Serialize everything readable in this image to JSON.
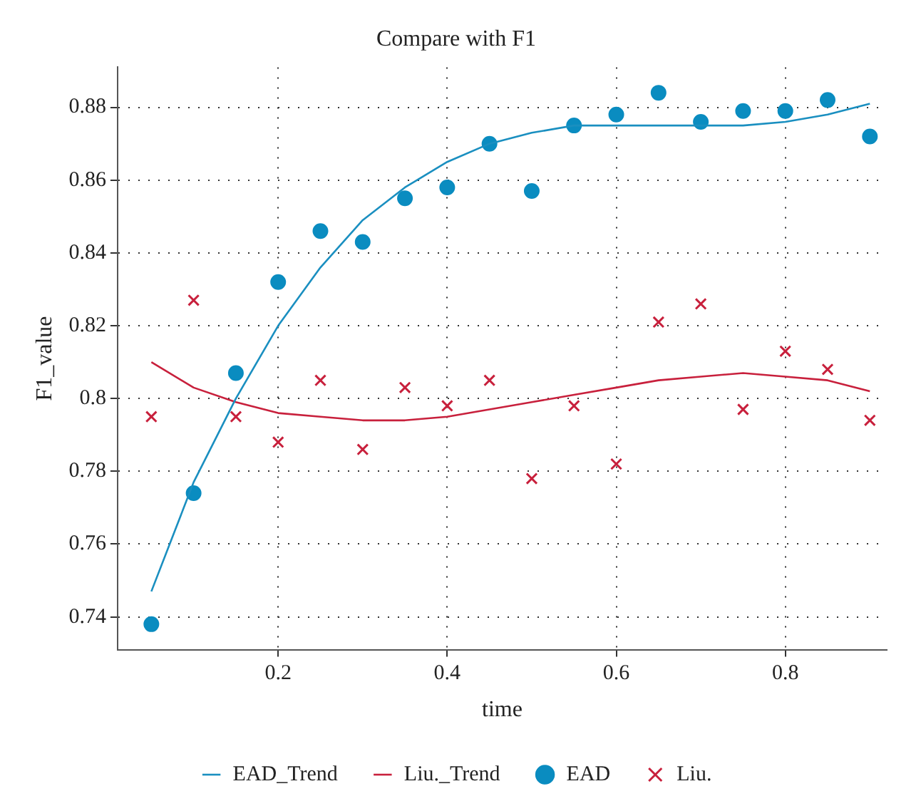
{
  "chart_data": {
    "type": "scatter",
    "title": "Compare with F1",
    "xlabel": "time",
    "ylabel": "F1_value",
    "x": [
      0.05,
      0.1,
      0.15,
      0.2,
      0.25,
      0.3,
      0.35,
      0.4,
      0.45,
      0.5,
      0.55,
      0.6,
      0.65,
      0.7,
      0.75,
      0.8,
      0.85,
      0.9
    ],
    "series": [
      {
        "name": "EAD_Trend",
        "type": "line",
        "marker": "none",
        "color": "#1a8fc0",
        "values": [
          0.747,
          0.777,
          0.8,
          0.82,
          0.836,
          0.849,
          0.858,
          0.865,
          0.87,
          0.873,
          0.875,
          0.875,
          0.875,
          0.875,
          0.875,
          0.876,
          0.878,
          0.881
        ]
      },
      {
        "name": "Liu._Trend",
        "type": "line",
        "marker": "none",
        "color": "#c8203c",
        "values": [
          0.81,
          0.803,
          0.799,
          0.796,
          0.795,
          0.794,
          0.794,
          0.795,
          0.797,
          0.799,
          0.801,
          0.803,
          0.805,
          0.806,
          0.807,
          0.806,
          0.805,
          0.802
        ]
      },
      {
        "name": "EAD",
        "type": "scatter",
        "marker": "circle",
        "color": "#0a8cc0",
        "values": [
          0.738,
          0.774,
          0.807,
          0.832,
          0.846,
          0.843,
          0.855,
          0.858,
          0.87,
          0.857,
          0.875,
          0.878,
          0.884,
          0.876,
          0.879,
          0.879,
          0.882,
          0.872
        ]
      },
      {
        "name": "Liu.",
        "type": "scatter",
        "marker": "cross",
        "color": "#c8203c",
        "values": [
          0.795,
          0.827,
          0.795,
          0.788,
          0.805,
          0.786,
          0.803,
          0.798,
          0.805,
          0.778,
          0.798,
          0.782,
          0.821,
          0.826,
          0.797,
          0.813,
          0.808,
          0.794
        ]
      }
    ],
    "xlim": [
      0.01,
      0.92
    ],
    "xticks": [
      0.2,
      0.4,
      0.6,
      0.8
    ],
    "ylim": [
      0.731,
      0.891
    ],
    "yticks": [
      0.74,
      0.76,
      0.78,
      0.8,
      0.82,
      0.84,
      0.86,
      0.88
    ],
    "grid": true,
    "legend": "bottom",
    "line_style": "solid"
  }
}
